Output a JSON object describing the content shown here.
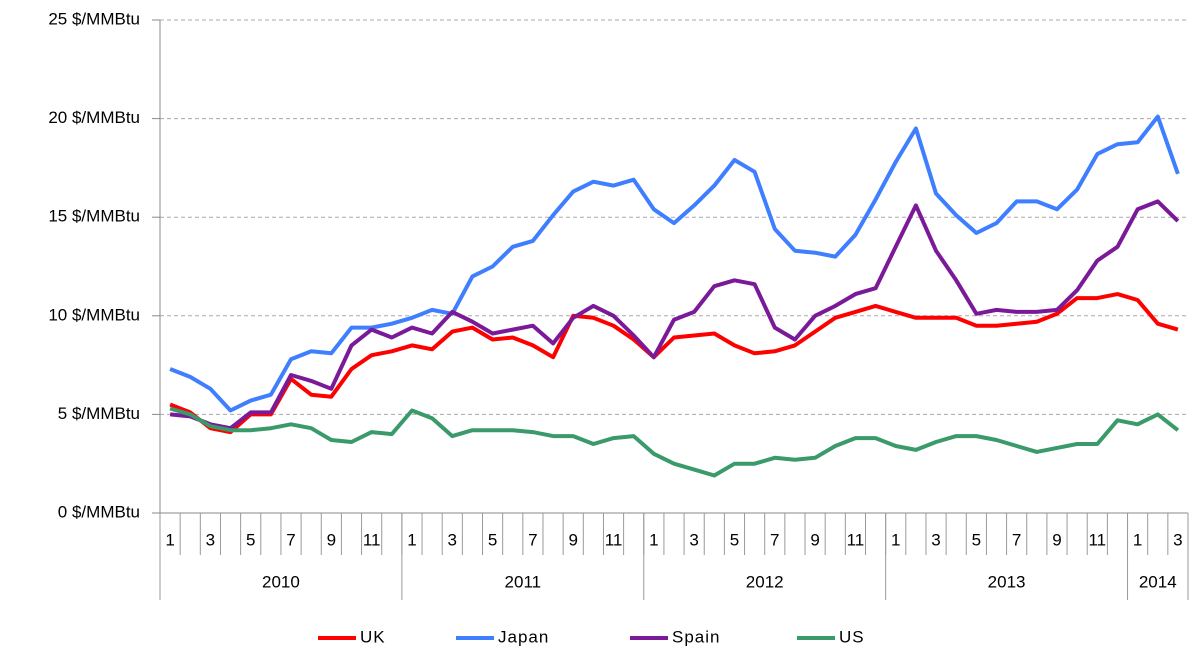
{
  "chart_data": {
    "type": "line",
    "categories": [
      "1",
      null,
      "3",
      null,
      "5",
      null,
      "7",
      null,
      "9",
      null,
      "11",
      null,
      "1",
      null,
      "3",
      null,
      "5",
      null,
      "7",
      null,
      "9",
      null,
      "11",
      null,
      "1",
      null,
      "3",
      null,
      "5",
      null,
      "7",
      null,
      "9",
      null,
      "11",
      null,
      "1",
      null,
      "3",
      null,
      "5",
      null,
      "7",
      null,
      "9",
      null,
      "11",
      null,
      "1",
      null,
      "3"
    ],
    "x_groups": [
      {
        "label": "2010",
        "count": 12
      },
      {
        "label": "2011",
        "count": 12
      },
      {
        "label": "2012",
        "count": 12
      },
      {
        "label": "2013",
        "count": 12
      },
      {
        "label": "2014",
        "count": 3
      }
    ],
    "series": [
      {
        "name": "UK",
        "color": "#ff0000",
        "values": [
          5.5,
          5.1,
          4.3,
          4.1,
          5.0,
          5.0,
          6.8,
          6.0,
          5.9,
          7.3,
          8.0,
          8.2,
          8.5,
          8.3,
          9.2,
          9.4,
          8.8,
          8.9,
          8.5,
          7.9,
          10.0,
          9.9,
          9.5,
          8.8,
          7.9,
          8.9,
          9.0,
          9.1,
          8.5,
          8.1,
          8.2,
          8.5,
          9.2,
          9.9,
          10.2,
          10.5,
          10.2,
          9.9,
          9.9,
          9.9,
          9.5,
          9.5,
          9.6,
          9.7,
          10.1,
          10.9,
          10.9,
          11.1,
          10.8,
          9.6,
          9.3
        ]
      },
      {
        "name": "Japan",
        "color": "#3f7fff",
        "values": [
          7.3,
          6.9,
          6.3,
          5.2,
          5.7,
          6.0,
          7.8,
          8.2,
          8.1,
          9.4,
          9.4,
          9.6,
          9.9,
          10.3,
          10.1,
          12.0,
          12.5,
          13.5,
          13.8,
          15.1,
          16.3,
          16.8,
          16.6,
          16.9,
          15.4,
          14.7,
          15.6,
          16.6,
          17.9,
          17.3,
          14.4,
          13.3,
          13.2,
          13.0,
          14.1,
          15.9,
          17.8,
          19.5,
          16.2,
          15.1,
          14.2,
          14.7,
          15.8,
          15.8,
          15.4,
          16.4,
          18.2,
          18.7,
          18.8,
          20.1,
          17.2
        ]
      },
      {
        "name": "Spain",
        "color": "#7b1a98",
        "values": [
          5.0,
          4.9,
          4.5,
          4.3,
          5.1,
          5.1,
          7.0,
          6.7,
          6.3,
          8.5,
          9.3,
          8.9,
          9.4,
          9.1,
          10.2,
          9.7,
          9.1,
          9.3,
          9.5,
          8.6,
          9.9,
          10.5,
          10.0,
          9.0,
          7.9,
          9.8,
          10.2,
          11.5,
          11.8,
          11.6,
          9.4,
          8.8,
          10.0,
          10.5,
          11.1,
          11.4,
          13.5,
          15.6,
          13.3,
          11.8,
          10.1,
          10.3,
          10.2,
          10.2,
          10.3,
          11.3,
          12.8,
          13.5,
          15.4,
          15.8,
          14.8
        ]
      },
      {
        "name": "US",
        "color": "#3a9a6a",
        "values": [
          5.3,
          5.0,
          4.4,
          4.2,
          4.2,
          4.3,
          4.5,
          4.3,
          3.7,
          3.6,
          4.1,
          4.0,
          5.2,
          4.8,
          3.9,
          4.2,
          4.2,
          4.2,
          4.1,
          3.9,
          3.9,
          3.5,
          3.8,
          3.9,
          3.0,
          2.5,
          2.2,
          1.9,
          2.5,
          2.5,
          2.8,
          2.7,
          2.8,
          3.4,
          3.8,
          3.8,
          3.4,
          3.2,
          3.6,
          3.9,
          3.9,
          3.7,
          3.4,
          3.1,
          3.3,
          3.5,
          3.5,
          4.7,
          4.5,
          5.0,
          4.2
        ]
      }
    ],
    "ylim": [
      0,
      25
    ],
    "yticks": [
      {
        "value": 0,
        "label": "0 $/MMBtu"
      },
      {
        "value": 5,
        "label": "5 $/MMBtu"
      },
      {
        "value": 10,
        "label": "10 $/MMBtu"
      },
      {
        "value": 15,
        "label": "15 $/MMBtu"
      },
      {
        "value": 20,
        "label": "20 $/MMBtu"
      },
      {
        "value": 25,
        "label": "25 $/MMBtu"
      }
    ],
    "grid": true,
    "legend": "bottom"
  }
}
